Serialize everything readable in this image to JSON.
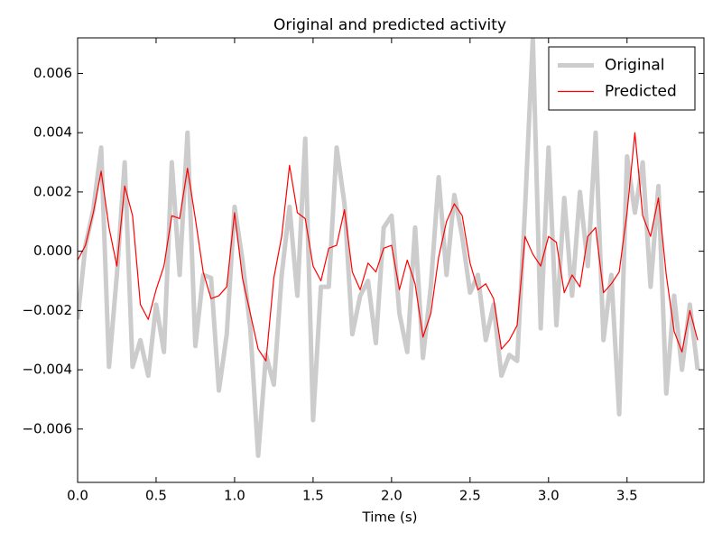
{
  "chart_data": {
    "type": "line",
    "title": "Original and predicted activity",
    "x_label": "Time (s)",
    "x": [
      0,
      0.05,
      0.1,
      0.15,
      0.2,
      0.25,
      0.3,
      0.35,
      0.4,
      0.45,
      0.5,
      0.55,
      0.6,
      0.65,
      0.7,
      0.75,
      0.8,
      0.85,
      0.9,
      0.95,
      1.0,
      1.05,
      1.1,
      1.15,
      1.2,
      1.25,
      1.3,
      1.35,
      1.4,
      1.45,
      1.5,
      1.55,
      1.6,
      1.65,
      1.7,
      1.75,
      1.8,
      1.85,
      1.9,
      1.95,
      2.0,
      2.05,
      2.1,
      2.15,
      2.2,
      2.25,
      2.3,
      2.35,
      2.4,
      2.45,
      2.5,
      2.55,
      2.6,
      2.65,
      2.7,
      2.75,
      2.8,
      2.85,
      2.9,
      2.95,
      3.0,
      3.05,
      3.1,
      3.15,
      3.2,
      3.25,
      3.3,
      3.35,
      3.4,
      3.45,
      3.5,
      3.55,
      3.6,
      3.65,
      3.7,
      3.75,
      3.8,
      3.85,
      3.9,
      3.95
    ],
    "series": [
      {
        "name": "Original",
        "color": "#cccccc",
        "line_width": 5,
        "values": [
          -0.0023,
          0.0002,
          0.0014,
          0.0035,
          -0.0039,
          -0.0008,
          0.003,
          -0.0039,
          -0.003,
          -0.0042,
          -0.0018,
          -0.0034,
          0.003,
          -0.0008,
          0.004,
          -0.0032,
          -0.0008,
          -0.0009,
          -0.0047,
          -0.0028,
          0.0015,
          -0.0003,
          -0.0026,
          -0.0069,
          -0.0035,
          -0.0045,
          -0.0008,
          0.0015,
          -0.0015,
          0.0038,
          -0.0057,
          -0.0012,
          -0.0012,
          0.0035,
          0.0016,
          -0.0028,
          -0.0015,
          -0.001,
          -0.0031,
          0.0008,
          0.0012,
          -0.0021,
          -0.0034,
          0.0008,
          -0.0036,
          -0.0012,
          0.0025,
          -0.0008,
          0.0019,
          0.0005,
          -0.0014,
          -0.0008,
          -0.003,
          -0.0018,
          -0.0042,
          -0.0035,
          -0.0037,
          0.0014,
          0.0072,
          -0.0026,
          0.0035,
          -0.0025,
          0.0018,
          -0.0015,
          0.002,
          -0.0005,
          0.004,
          -0.003,
          -0.0008,
          -0.0055,
          0.0032,
          0.0013,
          0.003,
          -0.0012,
          0.0022,
          -0.0048,
          -0.0015,
          -0.004,
          -0.0018,
          -0.004
        ]
      },
      {
        "name": "Predicted",
        "color": "#ff0000",
        "line_width": 1.2,
        "values": [
          -0.0003,
          0.0002,
          0.0013,
          0.0027,
          0.0008,
          -0.0005,
          0.0022,
          0.0012,
          -0.0018,
          -0.0023,
          -0.0013,
          -0.0005,
          0.0012,
          0.0011,
          0.0028,
          0.0011,
          -0.0007,
          -0.0016,
          -0.0015,
          -0.0012,
          0.0013,
          -0.0009,
          -0.0021,
          -0.0033,
          -0.0037,
          -0.0009,
          0.0005,
          0.0029,
          0.0013,
          0.0011,
          -0.0005,
          -0.001,
          0.0001,
          0.0002,
          0.0014,
          -0.0007,
          -0.0013,
          -0.0004,
          -0.0007,
          0.0001,
          0.0002,
          -0.0013,
          -0.0003,
          -0.0011,
          -0.0029,
          -0.0021,
          -0.0002,
          0.001,
          0.0016,
          0.0012,
          -0.0004,
          -0.0013,
          -0.0011,
          -0.0016,
          -0.0033,
          -0.003,
          -0.0025,
          0.0005,
          -0.0001,
          -0.0005,
          0.0005,
          0.0003,
          -0.0014,
          -0.0008,
          -0.0012,
          0.0005,
          0.0008,
          -0.0014,
          -0.0011,
          -0.0007,
          0.0013,
          0.004,
          0.0012,
          0.0005,
          0.0018,
          -0.0008,
          -0.0027,
          -0.0034,
          -0.002,
          -0.003
        ]
      }
    ],
    "xlim": [
      0,
      3.99
    ],
    "ylim": [
      -0.0078,
      0.0072
    ],
    "xticks": [
      {
        "value": 0,
        "label": "0.0"
      },
      {
        "value": 0.5,
        "label": "0.5"
      },
      {
        "value": 1,
        "label": "1.0"
      },
      {
        "value": 1.5,
        "label": "1.5"
      },
      {
        "value": 2,
        "label": "2.0"
      },
      {
        "value": 2.5,
        "label": "2.5"
      },
      {
        "value": 3,
        "label": "3.0"
      },
      {
        "value": 3.5,
        "label": "3.5"
      }
    ],
    "yticks": [
      {
        "value": -0.006,
        "label": "−0.006"
      },
      {
        "value": -0.004,
        "label": "−0.004"
      },
      {
        "value": -0.002,
        "label": "−0.002"
      },
      {
        "value": 0,
        "label": "0.000"
      },
      {
        "value": 0.002,
        "label": "0.002"
      },
      {
        "value": 0.004,
        "label": "0.004"
      },
      {
        "value": 0.006,
        "label": "0.006"
      }
    ],
    "legend": "upper right",
    "grid": false
  }
}
